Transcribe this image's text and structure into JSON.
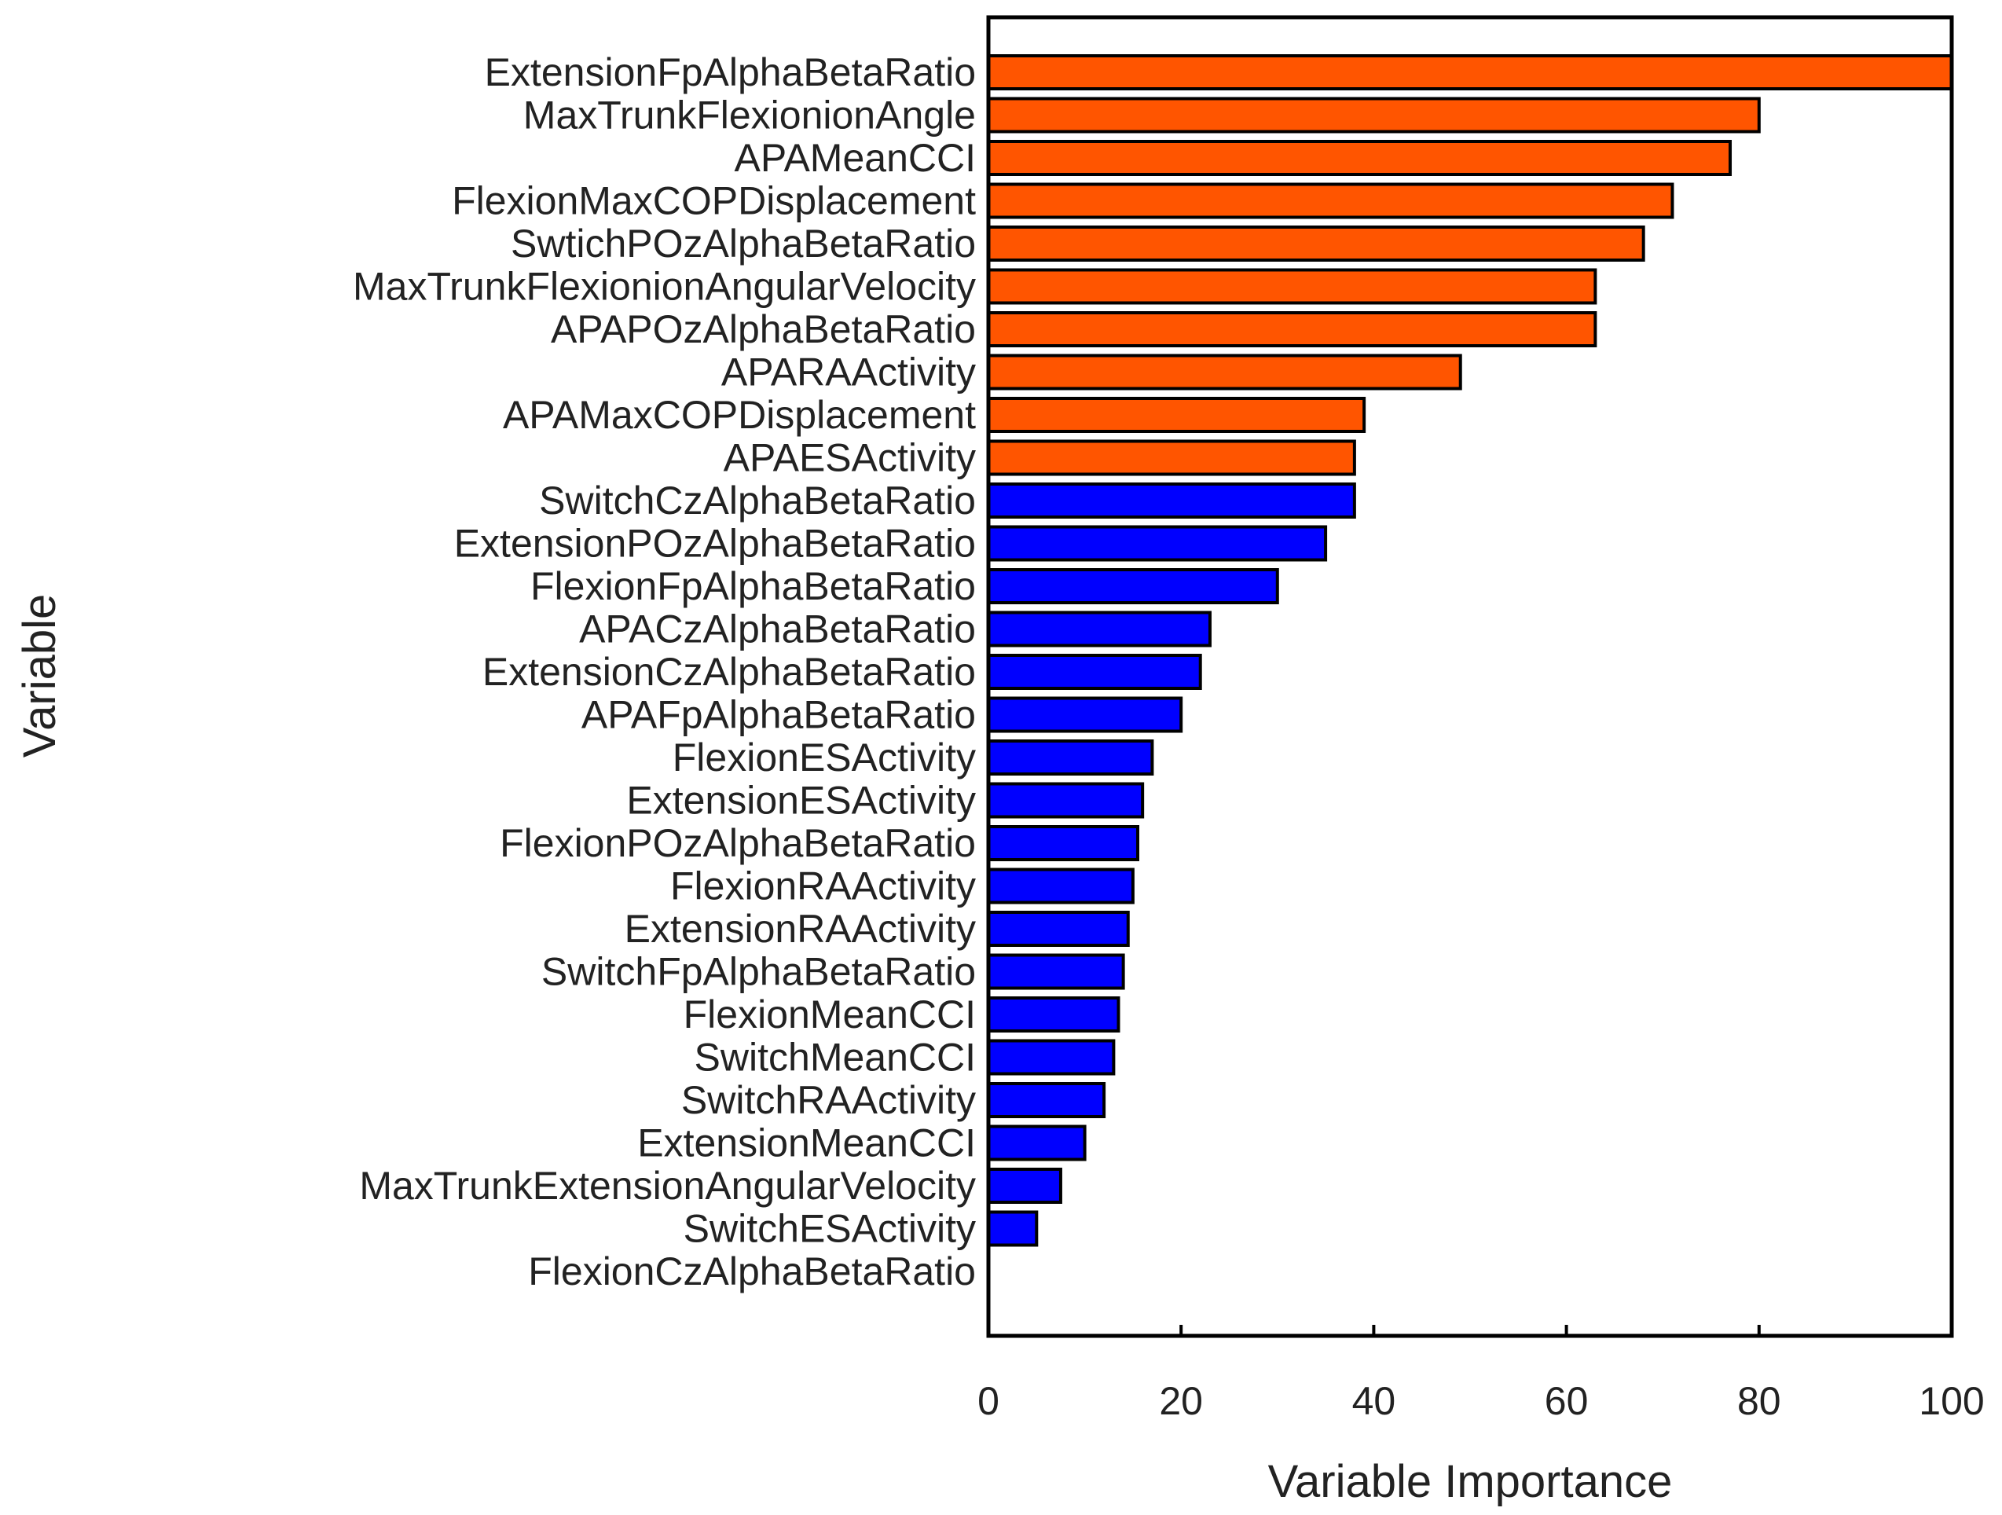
{
  "chart_data": {
    "type": "bar",
    "orientation": "horizontal",
    "xlabel": "Variable Importance",
    "ylabel": "Variable",
    "xlim": [
      0,
      100
    ],
    "xticks": [
      0,
      20,
      40,
      60,
      80,
      100
    ],
    "grid": false,
    "legend": "none",
    "colors": {
      "top_group": "#FF5500",
      "other": "#0000FF",
      "outline": "#000000"
    },
    "bars": [
      {
        "label": "ExtensionFpAlphaBetaRatio",
        "value": 100,
        "group": "top_group"
      },
      {
        "label": "MaxTrunkFlexionionAngle",
        "value": 80,
        "group": "top_group"
      },
      {
        "label": "APAMeanCCI",
        "value": 77,
        "group": "top_group"
      },
      {
        "label": "FlexionMaxCOPDisplacement",
        "value": 71,
        "group": "top_group"
      },
      {
        "label": "SwtichPOzAlphaBetaRatio",
        "value": 68,
        "group": "top_group"
      },
      {
        "label": "MaxTrunkFlexionionAngularVelocity",
        "value": 63,
        "group": "top_group"
      },
      {
        "label": "APAPOzAlphaBetaRatio",
        "value": 63,
        "group": "top_group"
      },
      {
        "label": "APARAActivity",
        "value": 49,
        "group": "top_group"
      },
      {
        "label": "APAMaxCOPDisplacement",
        "value": 39,
        "group": "top_group"
      },
      {
        "label": "APAESActivity",
        "value": 38,
        "group": "top_group"
      },
      {
        "label": "SwitchCzAlphaBetaRatio",
        "value": 38,
        "group": "other"
      },
      {
        "label": "ExtensionPOzAlphaBetaRatio",
        "value": 35,
        "group": "other"
      },
      {
        "label": "FlexionFpAlphaBetaRatio",
        "value": 30,
        "group": "other"
      },
      {
        "label": "APACzAlphaBetaRatio",
        "value": 23,
        "group": "other"
      },
      {
        "label": "ExtensionCzAlphaBetaRatio",
        "value": 22,
        "group": "other"
      },
      {
        "label": "APAFpAlphaBetaRatio",
        "value": 20,
        "group": "other"
      },
      {
        "label": "FlexionESActivity",
        "value": 17,
        "group": "other"
      },
      {
        "label": "ExtensionESActivity",
        "value": 16,
        "group": "other"
      },
      {
        "label": "FlexionPOzAlphaBetaRatio",
        "value": 15.5,
        "group": "other"
      },
      {
        "label": "FlexionRAActivity",
        "value": 15,
        "group": "other"
      },
      {
        "label": "ExtensionRAActivity",
        "value": 14.5,
        "group": "other"
      },
      {
        "label": "SwitchFpAlphaBetaRatio",
        "value": 14,
        "group": "other"
      },
      {
        "label": "FlexionMeanCCI",
        "value": 13.5,
        "group": "other"
      },
      {
        "label": "SwitchMeanCCI",
        "value": 13,
        "group": "other"
      },
      {
        "label": "SwitchRAActivity",
        "value": 12,
        "group": "other"
      },
      {
        "label": "ExtensionMeanCCI",
        "value": 10,
        "group": "other"
      },
      {
        "label": "MaxTrunkExtensionAngularVelocity",
        "value": 7.5,
        "group": "other"
      },
      {
        "label": "SwitchESActivity",
        "value": 5,
        "group": "other"
      },
      {
        "label": "FlexionCzAlphaBetaRatio",
        "value": 0,
        "group": "other"
      }
    ]
  }
}
